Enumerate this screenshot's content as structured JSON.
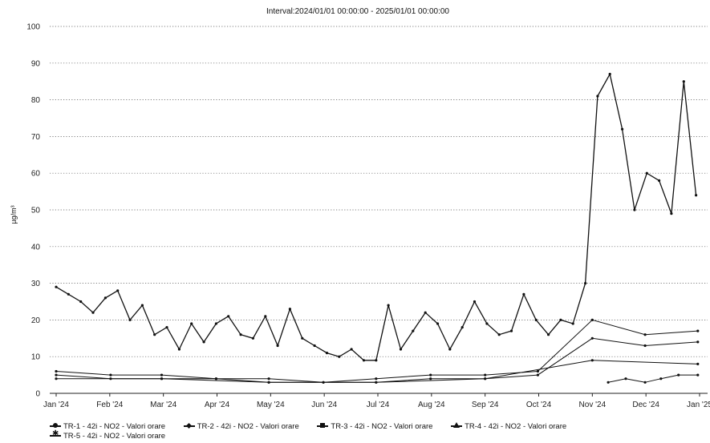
{
  "chart_data": {
    "type": "line",
    "title": "Interval:2024/01/01 00:00:00 - 2025/01/01 00:00:00",
    "xlabel": "",
    "ylabel": "µg/m³",
    "x_tick_labels": [
      "Jan '24",
      "Feb '24",
      "Mar '24",
      "Apr '24",
      "May '24",
      "Jun '24",
      "Jul '24",
      "Aug '24",
      "Sep '24",
      "Oct '24",
      "Nov '24",
      "Dec '24",
      "Jan '25"
    ],
    "y_ticks": [
      0,
      10,
      20,
      30,
      40,
      50,
      60,
      70,
      80,
      90,
      100
    ],
    "ylim": [
      0,
      100
    ],
    "grid": true,
    "legend_position": "bottom",
    "series": [
      {
        "name": "TR-1 - 42i - NO2 - Valori orare",
        "marker": "circle",
        "x": [
          "2024-01-01",
          "2024-01-08",
          "2024-01-15",
          "2024-01-22",
          "2024-01-29",
          "2024-02-05",
          "2024-02-12",
          "2024-02-19",
          "2024-02-26",
          "2024-03-04",
          "2024-03-11",
          "2024-03-18",
          "2024-03-25",
          "2024-04-01",
          "2024-04-08",
          "2024-04-15",
          "2024-04-22",
          "2024-04-29",
          "2024-05-06",
          "2024-05-13",
          "2024-05-20",
          "2024-05-27",
          "2024-06-03",
          "2024-06-10",
          "2024-06-17",
          "2024-06-24",
          "2024-07-01",
          "2024-07-08",
          "2024-07-15",
          "2024-07-22",
          "2024-07-29",
          "2024-08-05",
          "2024-08-12",
          "2024-08-19",
          "2024-08-26",
          "2024-09-02",
          "2024-09-09",
          "2024-09-16",
          "2024-09-23",
          "2024-09-30",
          "2024-10-07",
          "2024-10-14",
          "2024-10-21",
          "2024-10-28",
          "2024-11-04",
          "2024-11-11",
          "2024-11-18",
          "2024-11-25",
          "2024-12-02",
          "2024-12-09",
          "2024-12-16",
          "2024-12-23",
          "2024-12-30"
        ],
        "y": [
          29,
          27,
          25,
          22,
          26,
          28,
          20,
          24,
          16,
          18,
          12,
          19,
          14,
          19,
          21,
          16,
          15,
          21,
          13,
          23,
          15,
          13,
          11,
          10,
          12,
          9,
          9,
          24,
          12,
          17,
          22,
          19,
          12,
          18,
          25,
          19,
          16,
          17,
          27,
          20,
          16,
          20,
          19,
          30,
          81,
          87,
          72,
          50,
          60,
          58,
          49,
          85,
          54
        ]
      },
      {
        "name": "TR-2 - 42i - NO2 - Valori orare",
        "marker": "diamond",
        "x": [
          "2024-01-01",
          "2024-02-01",
          "2024-03-01",
          "2024-04-01",
          "2024-05-01",
          "2024-06-01",
          "2024-07-01",
          "2024-08-01",
          "2024-09-01",
          "2024-10-01",
          "2024-11-01",
          "2024-12-01",
          "2024-12-31"
        ],
        "y": [
          6,
          5,
          5,
          4,
          4,
          3,
          4,
          5,
          5,
          6,
          20,
          16,
          17
        ]
      },
      {
        "name": "TR-3 - 42i - NO2 - Valori orare",
        "marker": "square",
        "x": [
          "2024-01-01",
          "2024-02-01",
          "2024-03-01",
          "2024-04-01",
          "2024-05-01",
          "2024-06-01",
          "2024-07-01",
          "2024-08-01",
          "2024-09-01",
          "2024-10-01",
          "2024-11-01",
          "2024-12-01",
          "2024-12-31"
        ],
        "y": [
          5,
          4,
          4,
          4,
          3,
          3,
          3,
          4,
          4,
          5,
          15,
          13,
          14
        ]
      },
      {
        "name": "TR-4 - 42i - NO2 - Valori orare",
        "marker": "triangle",
        "x": [
          "2024-11-10",
          "2024-11-20",
          "2024-12-01",
          "2024-12-10",
          "2024-12-20",
          "2024-12-31"
        ],
        "y": [
          3,
          4,
          3,
          4,
          5,
          5
        ]
      },
      {
        "name": "TR-5 - 42i - NO2 - Valori orare",
        "marker": "star",
        "x": [
          "2024-01-01",
          "2024-03-01",
          "2024-05-01",
          "2024-07-01",
          "2024-09-01",
          "2024-11-01",
          "2024-12-31"
        ],
        "y": [
          4,
          4,
          3,
          3,
          4,
          9,
          8
        ]
      }
    ]
  },
  "legend": {
    "items": [
      {
        "label": "TR-1 - 42i - NO2 - Valori orare",
        "marker_icon": "circle-marker-icon"
      },
      {
        "label": "TR-2 - 42i - NO2 - Valori orare",
        "marker_icon": "diamond-marker-icon"
      },
      {
        "label": "TR-3 - 42i - NO2 - Valori orare",
        "marker_icon": "square-marker-icon"
      },
      {
        "label": "TR-4 - 42i - NO2 - Valori orare",
        "marker_icon": "triangle-marker-icon"
      },
      {
        "label": "TR-5 - 42i - NO2 - Valori orare",
        "marker_icon": "star-marker-icon"
      }
    ]
  },
  "colors": {
    "ink": "#111111",
    "grid": "#555555"
  }
}
